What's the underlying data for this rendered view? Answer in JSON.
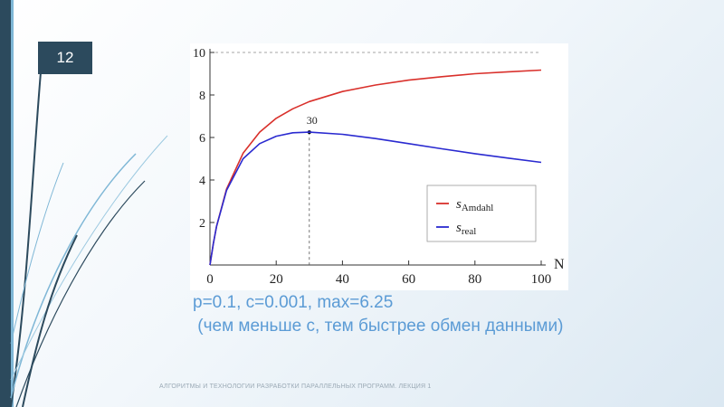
{
  "slide": {
    "number": "12",
    "caption_line1": "p=0.1, c=0.001, max=6.25",
    "caption_line2": " (чем меньше с, тем быстрее обмен данными)",
    "footer": "АЛГОРИТМЫ И ТЕХНОЛОГИИ РАЗРАБОТКИ ПАРАЛЛЕЛЬНЫХ ПРОГРАММ. ЛЕКЦИЯ 1"
  },
  "colors": {
    "dark_bar": "#2c4a5d",
    "accent": "#5b9bd5",
    "amdahl": "#d9302b",
    "real": "#2a2ad0"
  },
  "chart_data": {
    "type": "line",
    "xlabel": "N",
    "ylabel": "",
    "xlim": [
      0,
      100
    ],
    "ylim": [
      0,
      10
    ],
    "x_ticks": [
      0,
      20,
      40,
      60,
      80,
      100
    ],
    "y_ticks": [
      2,
      4,
      6,
      8,
      10
    ],
    "params": {
      "p": 0.1,
      "c": 0.001
    },
    "series": [
      {
        "name_main": "s",
        "name_sub": "Amdahl",
        "color": "#d9302b",
        "x": [
          1,
          2,
          5,
          10,
          15,
          20,
          25,
          30,
          40,
          50,
          60,
          70,
          80,
          90,
          100
        ],
        "y": [
          1.0,
          1.82,
          3.57,
          5.26,
          6.25,
          6.9,
          7.35,
          7.69,
          8.16,
          8.47,
          8.7,
          8.86,
          9.0,
          9.09,
          9.17
        ]
      },
      {
        "name_main": "s",
        "name_sub": "real",
        "color": "#2a2ad0",
        "x": [
          1,
          2,
          5,
          10,
          15,
          20,
          25,
          30,
          40,
          50,
          60,
          70,
          80,
          90,
          100
        ],
        "y": [
          1.0,
          1.82,
          3.51,
          5.0,
          5.71,
          6.06,
          6.22,
          6.25,
          6.15,
          5.95,
          5.71,
          5.47,
          5.24,
          5.03,
          4.83
        ]
      }
    ],
    "annotation": {
      "label": "30",
      "x": 30,
      "y": 6.25
    },
    "max_line_y": 10,
    "legend_position": "lower-right",
    "grid": false
  }
}
